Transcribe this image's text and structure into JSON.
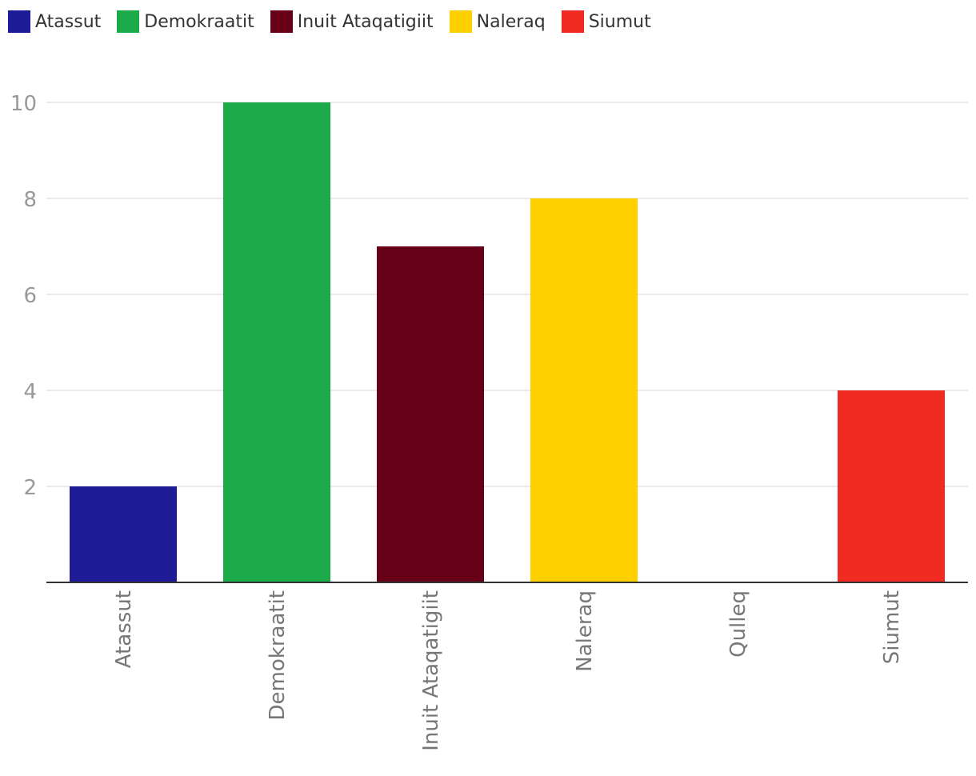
{
  "legend": [
    {
      "label": "Atassut",
      "color": "#1f1a96"
    },
    {
      "label": "Demokraatit",
      "color": "#1caa4a"
    },
    {
      "label": "Inuit Ataqatigiit",
      "color": "#650016"
    },
    {
      "label": "Naleraq",
      "color": "#ffd000"
    },
    {
      "label": "Siumut",
      "color": "#f22b22"
    }
  ],
  "chart_data": {
    "type": "bar",
    "categories": [
      "Atassut",
      "Demokraatit",
      "Inuit Ataqatigiit",
      "Naleraq",
      "Qulleq",
      "Siumut"
    ],
    "values": [
      2,
      10,
      7,
      8,
      0,
      4
    ],
    "colors": [
      "#1f1a96",
      "#1caa4a",
      "#650016",
      "#ffd000",
      "#cccccc",
      "#f22b22"
    ],
    "yticks": [
      2,
      4,
      6,
      8,
      10
    ],
    "ylim": [
      0,
      10
    ],
    "grid": true,
    "legend_position": "top-left"
  }
}
